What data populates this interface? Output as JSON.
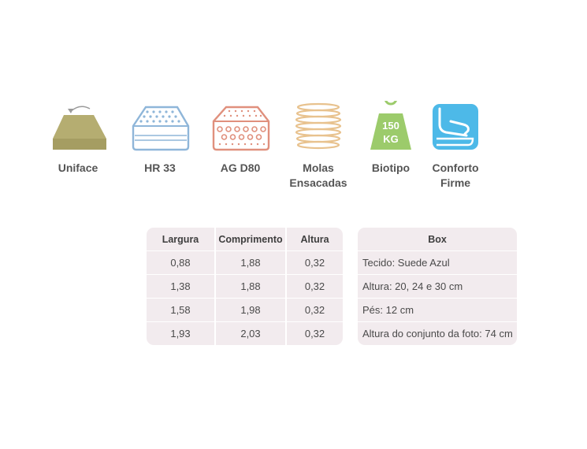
{
  "features": [
    {
      "icon": "uniface-mattress-icon",
      "label": "Uniface",
      "label2": ""
    },
    {
      "icon": "hr33-foam-icon",
      "label": "HR 33",
      "label2": ""
    },
    {
      "icon": "ag-d80-foam-icon",
      "label": "AG D80",
      "label2": ""
    },
    {
      "icon": "pocket-springs-icon",
      "label": "Molas",
      "label2": "Ensacadas"
    },
    {
      "icon": "weight-150kg-icon",
      "label": "Biotipo",
      "label2": "",
      "weight_text_1": "150",
      "weight_text_2": "KG"
    },
    {
      "icon": "firm-comfort-icon",
      "label": "Conforto",
      "label2": "Firme"
    }
  ],
  "colors": {
    "uniface": "#b5ad71",
    "hr33": "#8fb6d9",
    "agd80": "#e0907d",
    "springs": "#e8c28e",
    "weight": "#9ccb6b",
    "comfort": "#4db9e8",
    "table_bg": "#f2ebee"
  },
  "sizes_table": {
    "headers": [
      "Largura",
      "Comprimento",
      "Altura"
    ],
    "rows": [
      [
        "0,88",
        "1,88",
        "0,32"
      ],
      [
        "1,38",
        "1,88",
        "0,32"
      ],
      [
        "1,58",
        "1,98",
        "0,32"
      ],
      [
        "1,93",
        "2,03",
        "0,32"
      ]
    ]
  },
  "box_table": {
    "header": "Box",
    "rows": [
      "Tecido: Suede Azul",
      "Altura: 20, 24 e 30 cm",
      "Pés: 12 cm",
      "Altura do conjunto da foto: 74 cm"
    ]
  }
}
